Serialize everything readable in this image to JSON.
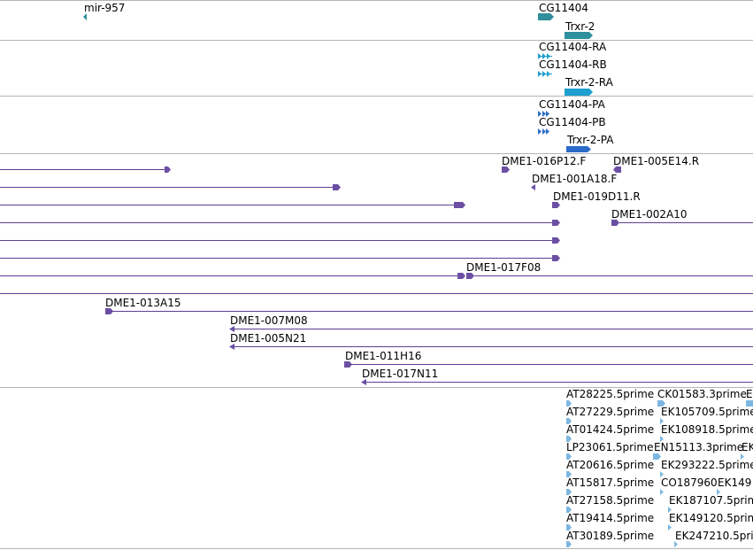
{
  "colors": {
    "mirna": "#2f8f9d",
    "gene": "#2f8f9d",
    "mrna": "#1e9fd0",
    "protein": "#2a6bc9",
    "clone": "#6b4fa3",
    "est": "#7db7e0",
    "separator": "#b4b4b4"
  },
  "tracks": {
    "mirna": {
      "items": [
        {
          "label": "mir-957"
        }
      ]
    },
    "gene": {
      "items": [
        {
          "label": "CG11404"
        },
        {
          "label": "Trxr-2"
        }
      ]
    },
    "mrna": {
      "items": [
        {
          "label": "CG11404-RA"
        },
        {
          "label": "CG11404-RB"
        },
        {
          "label": "Trxr-2-RA"
        }
      ]
    },
    "protein": {
      "items": [
        {
          "label": "CG11404-PA"
        },
        {
          "label": "CG11404-PB"
        },
        {
          "label": "Trxr-2-PA"
        }
      ]
    },
    "clones": {
      "items": [
        {
          "label": "DME1-016P12.F"
        },
        {
          "label": "DME1-005E14.R"
        },
        {
          "label": "DME1-001A18.F"
        },
        {
          "label": "DME1-019D11.R"
        },
        {
          "label": "DME1-002A10"
        },
        {
          "label": "DME1-017F08"
        },
        {
          "label": "DME1-013A15"
        },
        {
          "label": "DME1-007M08"
        },
        {
          "label": "DME1-005N21"
        },
        {
          "label": "DME1-011H16"
        },
        {
          "label": "DME1-017N11"
        }
      ]
    },
    "est": {
      "rows": [
        [
          "AT28225.5prime",
          "CK01583.3prime",
          "E"
        ],
        [
          "AT27229.5prime",
          "EK105709.5prime"
        ],
        [
          "AT01424.5prime",
          "EK108918.5prime"
        ],
        [
          "LP23061.5prime",
          "EN15113.3prime",
          "EK"
        ],
        [
          "AT20616.5prime",
          "EK293222.5prime"
        ],
        [
          "AT15817.5prime",
          "CO187960",
          "EK149"
        ],
        [
          "AT27158.5prime",
          "EK187107.5prim"
        ],
        [
          "AT19414.5prime",
          "EK149120.5prim"
        ],
        [
          "AT30189.5prime",
          "EK247210.5prim"
        ]
      ]
    }
  }
}
